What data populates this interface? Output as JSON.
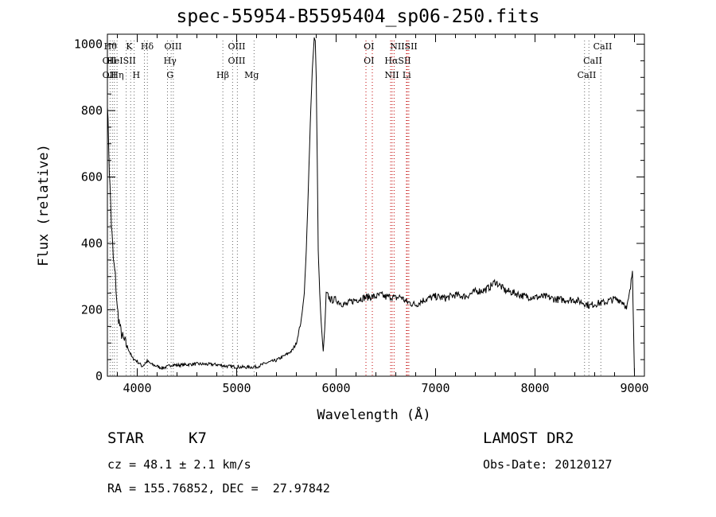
{
  "chart_data": {
    "type": "line",
    "title": "spec-55954-B5595404_sp06-250.fits",
    "xlabel": "Wavelength (Å)",
    "ylabel": "Flux (relative)",
    "xlim": [
      3700,
      9100
    ],
    "ylim": [
      0,
      1030
    ],
    "x_ticks": [
      4000,
      5000,
      6000,
      7000,
      8000,
      9000
    ],
    "y_ticks": [
      0,
      200,
      400,
      600,
      800,
      1000
    ],
    "grid": false,
    "series": [
      {
        "x": [
          3700,
          3720,
          3740,
          3760,
          3780,
          3800,
          3830,
          3860,
          3900,
          3950,
          4000,
          4050,
          4100,
          4150,
          4200,
          4250,
          4300,
          4350,
          4400,
          4500,
          4600,
          4700,
          4800,
          4900,
          5000,
          5100,
          5200,
          5300,
          5400,
          5500,
          5560,
          5600,
          5650,
          5680,
          5700,
          5720,
          5740,
          5760,
          5780,
          5790,
          5800,
          5810,
          5820,
          5835,
          5850,
          5870,
          5885,
          5900,
          5920,
          5950,
          6000,
          6050,
          6100,
          6150,
          6200,
          6300,
          6400,
          6450,
          6500,
          6550,
          6600,
          6650,
          6700,
          6750,
          6800,
          6850,
          6900,
          7000,
          7100,
          7200,
          7300,
          7400,
          7500,
          7550,
          7600,
          7650,
          7700,
          7800,
          7900,
          8000,
          8100,
          8200,
          8300,
          8400,
          8450,
          8500,
          8550,
          8600,
          8650,
          8700,
          8750,
          8800,
          8850,
          8900,
          8920,
          8940,
          8960,
          8980,
          8990,
          9000
        ],
        "y": [
          830,
          620,
          460,
          350,
          300,
          200,
          140,
          110,
          90,
          55,
          45,
          30,
          45,
          35,
          30,
          25,
          28,
          35,
          33,
          35,
          37,
          36,
          35,
          30,
          28,
          27,
          28,
          40,
          48,
          65,
          78,
          100,
          170,
          250,
          380,
          560,
          760,
          920,
          1020,
          1010,
          900,
          650,
          380,
          250,
          160,
          75,
          140,
          250,
          240,
          230,
          230,
          220,
          215,
          225,
          230,
          238,
          240,
          245,
          238,
          240,
          235,
          240,
          225,
          220,
          215,
          225,
          232,
          240,
          235,
          245,
          240,
          255,
          260,
          270,
          285,
          272,
          258,
          250,
          240,
          238,
          240,
          232,
          230,
          230,
          225,
          220,
          212,
          218,
          220,
          222,
          228,
          232,
          230,
          220,
          200,
          230,
          265,
          320,
          160,
          5
        ]
      }
    ],
    "lines": [
      {
        "x": 3727,
        "labels": [
          "OII",
          "OII"
        ]
      },
      {
        "x": 3750,
        "labels": [
          "Hθ"
        ]
      },
      {
        "x": 3770,
        "labels": [
          "HeI"
        ]
      },
      {
        "x": 3797,
        "labels": [
          "Hη"
        ]
      },
      {
        "x": 3889,
        "labels": [
          "HeI"
        ]
      },
      {
        "x": 3934,
        "labels": [
          "K"
        ]
      },
      {
        "x": 3969,
        "labels": [
          "H"
        ]
      },
      {
        "x": 4072,
        "labels": [
          "SII"
        ]
      },
      {
        "x": 4102,
        "labels": [
          "Hδ"
        ]
      },
      {
        "x": 4304,
        "labels": [
          "G"
        ]
      },
      {
        "x": 4341,
        "labels": [
          "Hγ"
        ]
      },
      {
        "x": 4363,
        "labels": [
          "OIII"
        ]
      },
      {
        "x": 4861,
        "labels": [
          "Hβ"
        ]
      },
      {
        "x": 4959,
        "labels": [
          "OIII"
        ]
      },
      {
        "x": 5007,
        "labels": [
          "OIII"
        ]
      },
      {
        "x": 5175,
        "labels": [
          "Mg"
        ]
      },
      {
        "x": 6300,
        "labels": [
          "OI"
        ]
      },
      {
        "x": 6364,
        "labels": [
          "OI"
        ]
      },
      {
        "x": 6548,
        "labels": [
          "NII"
        ]
      },
      {
        "x": 6563,
        "labels": [
          "Hα"
        ]
      },
      {
        "x": 6583,
        "labels": [
          "NII"
        ]
      },
      {
        "x": 6707,
        "labels": [
          "Li"
        ]
      },
      {
        "x": 6716,
        "labels": [
          "SII"
        ]
      },
      {
        "x": 6731,
        "labels": [
          "SII"
        ]
      },
      {
        "x": 8498,
        "labels": [
          "CaII"
        ]
      },
      {
        "x": 8542,
        "labels": [
          "CaII"
        ]
      },
      {
        "x": 8662,
        "labels": [
          "CaII"
        ]
      }
    ],
    "line_label_rows": [
      [
        "Hθ",
        "K",
        "Hδ",
        "OIII",
        "OIII",
        "OI",
        "NIISII",
        "CaII"
      ],
      [
        "OII",
        "HeISII",
        "Hγ",
        "OIII",
        "OI",
        "HαSII",
        "CaII"
      ],
      [
        "OII",
        "Hη",
        "H",
        "G",
        "Hβ",
        "Mg",
        "NII",
        "Li",
        "CaII"
      ]
    ]
  },
  "info": {
    "object": "STAR",
    "subclass": "K7",
    "survey": "LAMOST DR2",
    "cz": "cz = 48.1 ± 2.1 km/s",
    "obsdate": "Obs-Date: 20120127",
    "coords": "RA = 155.76852, DEC =  27.97842"
  }
}
